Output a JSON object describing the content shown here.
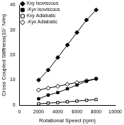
{
  "chart_data": {
    "type": "line",
    "x_label": "Rotational Speed (rpm)",
    "y_label": "Cross Coupled Stiffness(10⁷ N/m)",
    "x": [
      2000,
      3000,
      4000,
      5000,
      6000,
      7000,
      8000
    ],
    "series": [
      {
        "name": "Kxy Isoviscous",
        "color": "#000000",
        "marker": "diamond",
        "line_style": "solid",
        "values": [
          10,
          14,
          19,
          24,
          29,
          34,
          38
        ]
      },
      {
        "name": "-Kyx Isoviscous",
        "color": "#000000",
        "marker": "square",
        "line_style": "solid",
        "values": [
          2.5,
          4,
          5,
          6.5,
          8,
          9.5,
          10.5
        ]
      },
      {
        "name": "Kxy Adiabatic",
        "color": "#000000",
        "marker": "open_square",
        "line_style": "solid",
        "values": [
          0.5,
          0.8,
          1,
          1.3,
          1.6,
          1.9,
          2.2
        ]
      },
      {
        "name": "-Kyx Adiabatic",
        "color": "#000000",
        "marker": "open_diamond",
        "line_style": "solid",
        "values": [
          6,
          6.8,
          7.5,
          8.3,
          9,
          9.8,
          10.5
        ]
      }
    ],
    "xlim": [
      0,
      10000
    ],
    "xticks": [
      0,
      2000,
      4000,
      6000,
      8000,
      10000
    ],
    "ylim": [
      0,
      40
    ],
    "yticks": [
      0,
      10,
      20,
      30,
      40
    ],
    "grid": false,
    "legend": "top-left"
  }
}
